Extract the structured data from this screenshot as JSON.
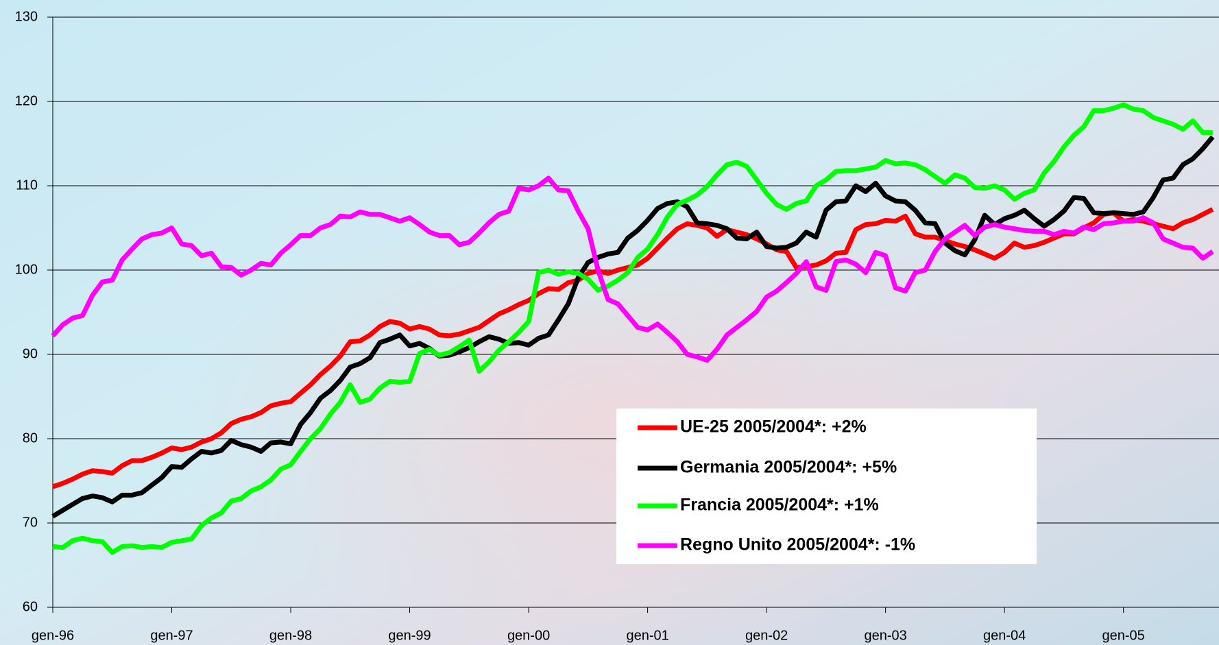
{
  "chart_data": {
    "type": "line",
    "categories": [
      "gen-96",
      null,
      null,
      null,
      null,
      null,
      null,
      null,
      null,
      null,
      null,
      null,
      "gen-97",
      null,
      null,
      null,
      null,
      null,
      null,
      null,
      null,
      null,
      null,
      null,
      "gen-98",
      null,
      null,
      null,
      null,
      null,
      null,
      null,
      null,
      null,
      null,
      null,
      "gen-99",
      null,
      null,
      null,
      null,
      null,
      null,
      null,
      null,
      null,
      null,
      null,
      "gen-00",
      null,
      null,
      null,
      null,
      null,
      null,
      null,
      null,
      null,
      null,
      null,
      "gen-01",
      null,
      null,
      null,
      null,
      null,
      null,
      null,
      null,
      null,
      null,
      null,
      "gen-02",
      null,
      null,
      null,
      null,
      null,
      null,
      null,
      null,
      null,
      null,
      null,
      "gen-03",
      null,
      null,
      null,
      null,
      null,
      null,
      null,
      null,
      null,
      null,
      null,
      "gen-04",
      null,
      null,
      null,
      null,
      null,
      null,
      null,
      null,
      null,
      null,
      null,
      "gen-05",
      null,
      null,
      null,
      null,
      null,
      null,
      null,
      null,
      null
    ],
    "series": [
      {
        "name": "UE-25 2005/2004*: +2%",
        "color": "#ff0000",
        "values": [
          74.3,
          74.7,
          75.2,
          75.8,
          76.2,
          76.1,
          75.9,
          76.8,
          77.4,
          77.4,
          77.8,
          78.3,
          78.9,
          78.7,
          79.0,
          79.6,
          80.0,
          80.7,
          81.8,
          82.3,
          82.6,
          83.1,
          83.9,
          84.2,
          84.4,
          85.4,
          86.4,
          87.6,
          88.6,
          89.8,
          91.5,
          91.6,
          92.3,
          93.3,
          93.9,
          93.7,
          93.0,
          93.3,
          93.0,
          92.3,
          92.2,
          92.4,
          92.8,
          93.2,
          94.0,
          94.8,
          95.3,
          95.9,
          96.4,
          97.2,
          97.8,
          97.7,
          98.5,
          98.8,
          99.6,
          99.9,
          99.6,
          100.0,
          100.3,
          100.6,
          101.4,
          102.6,
          103.8,
          104.9,
          105.5,
          105.3,
          105.0,
          104.0,
          104.8,
          104.5,
          104.2,
          103.7,
          103.1,
          102.4,
          102.2,
          100.3,
          100.4,
          100.6,
          101.1,
          102.0,
          102.1,
          104.8,
          105.4,
          105.5,
          105.9,
          105.8,
          106.4,
          104.3,
          103.9,
          103.9,
          103.5,
          103.1,
          102.8,
          102.4,
          101.9,
          101.4,
          102.1,
          103.2,
          102.7,
          102.9,
          103.3,
          103.8,
          104.3,
          104.3,
          105.0,
          105.6,
          106.6,
          106.8,
          105.8,
          106.0,
          105.8,
          105.5,
          105.2,
          104.9,
          105.6,
          106.0,
          106.6,
          107.2
        ]
      },
      {
        "name": "Germania 2005/2004*: +5%",
        "color": "#000000",
        "values": [
          70.8,
          71.5,
          72.2,
          72.9,
          73.2,
          73.0,
          72.5,
          73.3,
          73.3,
          73.6,
          74.5,
          75.4,
          76.7,
          76.6,
          77.6,
          78.5,
          78.3,
          78.6,
          79.8,
          79.3,
          79.0,
          78.5,
          79.5,
          79.6,
          79.4,
          81.7,
          83.1,
          84.8,
          85.7,
          86.9,
          88.5,
          88.9,
          89.6,
          91.4,
          91.8,
          92.3,
          91.0,
          91.3,
          90.7,
          89.8,
          89.9,
          90.3,
          90.8,
          91.5,
          92.1,
          91.8,
          91.3,
          91.4,
          91.1,
          91.9,
          92.3,
          94.1,
          96.0,
          99.1,
          100.9,
          101.5,
          101.9,
          102.1,
          103.8,
          104.7,
          105.9,
          107.3,
          107.9,
          108.1,
          107.5,
          105.6,
          105.5,
          105.3,
          104.9,
          103.8,
          103.7,
          104.5,
          102.8,
          102.6,
          102.7,
          103.2,
          104.5,
          103.9,
          107.1,
          108.1,
          108.2,
          110.0,
          109.3,
          110.3,
          108.8,
          108.2,
          108.1,
          107.1,
          105.6,
          105.5,
          103.2,
          102.3,
          101.8,
          103.6,
          106.5,
          105.4,
          106.1,
          106.5,
          107.1,
          106.1,
          105.2,
          106.0,
          107.0,
          108.6,
          108.5,
          106.8,
          106.7,
          106.8,
          106.7,
          106.6,
          106.9,
          108.6,
          110.7,
          110.9,
          112.5,
          113.2,
          114.4,
          115.8
        ]
      },
      {
        "name": "Francia 2005/2004*: +1%",
        "color": "#00ff00",
        "values": [
          67.2,
          67.1,
          67.9,
          68.2,
          67.9,
          67.8,
          66.5,
          67.2,
          67.3,
          67.1,
          67.2,
          67.1,
          67.7,
          67.9,
          68.1,
          69.7,
          70.6,
          71.2,
          72.6,
          72.9,
          73.8,
          74.3,
          75.1,
          76.4,
          76.9,
          78.5,
          80.0,
          81.2,
          82.9,
          84.3,
          86.4,
          84.3,
          84.7,
          86.0,
          86.8,
          86.7,
          86.8,
          90.1,
          90.6,
          89.9,
          90.2,
          90.9,
          91.7,
          88.0,
          89.1,
          90.5,
          91.5,
          92.6,
          93.9,
          99.7,
          100.0,
          99.5,
          99.8,
          99.6,
          98.9,
          97.6,
          98.1,
          98.8,
          99.7,
          101.5,
          102.5,
          104.2,
          106.3,
          107.8,
          108.3,
          108.9,
          109.9,
          111.3,
          112.5,
          112.8,
          112.3,
          110.7,
          109.1,
          107.8,
          107.2,
          107.9,
          108.2,
          110.0,
          110.7,
          111.7,
          111.8,
          111.8,
          112.0,
          112.2,
          113.0,
          112.6,
          112.7,
          112.5,
          111.9,
          111.1,
          110.3,
          111.3,
          110.9,
          109.8,
          109.7,
          110.0,
          109.5,
          108.4,
          109.1,
          109.5,
          111.5,
          112.9,
          114.6,
          116.0,
          117.0,
          118.9,
          118.9,
          119.2,
          119.6,
          119.1,
          118.9,
          118.1,
          117.7,
          117.3,
          116.7,
          117.7,
          116.3,
          116.3
        ]
      },
      {
        "name": "Regno Unito 2005/2004*: -1%",
        "color": "#ff00ff",
        "values": [
          92.2,
          93.5,
          94.3,
          94.6,
          97.0,
          98.6,
          98.8,
          101.2,
          102.5,
          103.7,
          104.2,
          104.4,
          105.0,
          103.1,
          102.9,
          101.7,
          102.0,
          100.4,
          100.3,
          99.4,
          100.0,
          100.8,
          100.6,
          102.0,
          103.0,
          104.1,
          104.1,
          105.0,
          105.4,
          106.4,
          106.3,
          106.9,
          106.6,
          106.6,
          106.2,
          105.8,
          106.2,
          105.4,
          104.5,
          104.1,
          104.1,
          103.0,
          103.3,
          104.4,
          105.6,
          106.6,
          107.0,
          109.7,
          109.5,
          110.0,
          110.9,
          109.5,
          109.4,
          107.0,
          104.9,
          100.0,
          96.5,
          96.0,
          94.6,
          93.2,
          92.9,
          93.6,
          92.6,
          91.5,
          90.0,
          89.7,
          89.3,
          90.6,
          92.3,
          93.2,
          94.1,
          95.1,
          96.8,
          97.5,
          98.5,
          99.6,
          101.0,
          98.0,
          97.6,
          101.0,
          101.2,
          100.7,
          99.7,
          102.1,
          101.7,
          97.9,
          97.5,
          99.7,
          100.0,
          102.2,
          103.7,
          104.5,
          105.3,
          104.1,
          105.1,
          105.4,
          105.1,
          104.9,
          104.7,
          104.6,
          104.6,
          104.2,
          104.6,
          104.4,
          105.1,
          104.8,
          105.5,
          105.6,
          105.8,
          105.8,
          106.2,
          105.6,
          103.7,
          103.2,
          102.7,
          102.6,
          101.4,
          102.2
        ]
      }
    ],
    "ylim": [
      60,
      130
    ],
    "yticks": [
      60,
      70,
      80,
      90,
      100,
      110,
      120,
      130
    ],
    "grid": true
  }
}
